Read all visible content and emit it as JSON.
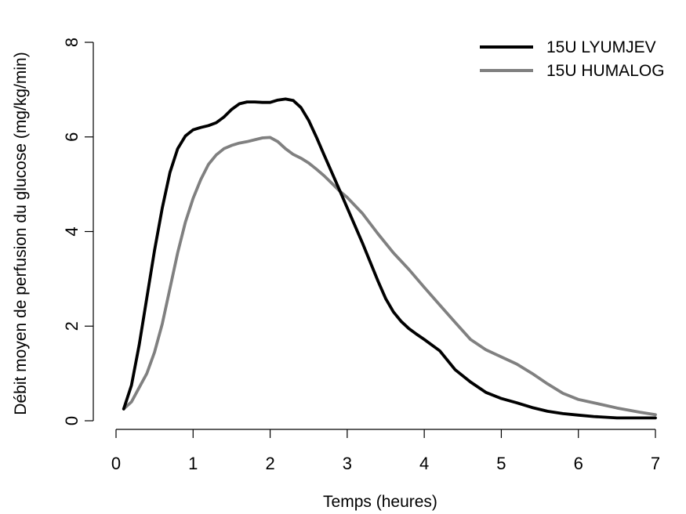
{
  "chart_data": {
    "type": "line",
    "title": "",
    "xlabel": "Temps (heures)",
    "ylabel": "Débit moyen de perfusion du glucose (mg/kg/min)",
    "xlim": [
      0,
      7
    ],
    "ylim": [
      0,
      8
    ],
    "xticks": [
      0,
      1,
      2,
      3,
      4,
      5,
      6,
      7
    ],
    "yticks": [
      0,
      2,
      4,
      6,
      8
    ],
    "grid": false,
    "legend_position": "top-right",
    "series": [
      {
        "name": "15U LYUMJEV",
        "color": "#000000",
        "x": [
          0.1,
          0.2,
          0.3,
          0.4,
          0.5,
          0.6,
          0.7,
          0.8,
          0.9,
          1.0,
          1.1,
          1.2,
          1.3,
          1.4,
          1.5,
          1.6,
          1.7,
          1.8,
          1.9,
          2.0,
          2.1,
          2.2,
          2.3,
          2.4,
          2.5,
          2.6,
          2.7,
          2.8,
          2.9,
          3.0,
          3.2,
          3.4,
          3.5,
          3.6,
          3.7,
          3.8,
          3.9,
          4.0,
          4.2,
          4.4,
          4.6,
          4.8,
          5.0,
          5.2,
          5.4,
          5.6,
          5.8,
          6.0,
          6.2,
          6.5,
          6.8,
          7.0
        ],
        "values": [
          0.25,
          0.75,
          1.6,
          2.6,
          3.6,
          4.5,
          5.25,
          5.75,
          6.02,
          6.15,
          6.2,
          6.24,
          6.3,
          6.42,
          6.58,
          6.7,
          6.74,
          6.74,
          6.73,
          6.73,
          6.78,
          6.8,
          6.77,
          6.62,
          6.35,
          6.0,
          5.62,
          5.25,
          4.88,
          4.5,
          3.75,
          2.95,
          2.58,
          2.3,
          2.1,
          1.95,
          1.83,
          1.72,
          1.48,
          1.08,
          0.82,
          0.6,
          0.47,
          0.38,
          0.28,
          0.2,
          0.15,
          0.12,
          0.09,
          0.06,
          0.06,
          0.06
        ]
      },
      {
        "name": "15U HUMALOG",
        "color": "#808080",
        "x": [
          0.1,
          0.2,
          0.3,
          0.4,
          0.5,
          0.6,
          0.7,
          0.8,
          0.9,
          1.0,
          1.1,
          1.2,
          1.3,
          1.4,
          1.5,
          1.6,
          1.7,
          1.8,
          1.9,
          2.0,
          2.1,
          2.2,
          2.3,
          2.4,
          2.5,
          2.6,
          2.7,
          2.8,
          2.9,
          3.0,
          3.2,
          3.4,
          3.6,
          3.8,
          4.0,
          4.2,
          4.4,
          4.6,
          4.8,
          5.0,
          5.2,
          5.4,
          5.6,
          5.8,
          6.0,
          6.2,
          6.5,
          6.8,
          7.0
        ],
        "values": [
          0.25,
          0.4,
          0.7,
          1.0,
          1.45,
          2.05,
          2.8,
          3.55,
          4.2,
          4.7,
          5.1,
          5.42,
          5.62,
          5.75,
          5.82,
          5.87,
          5.9,
          5.94,
          5.98,
          5.99,
          5.9,
          5.75,
          5.63,
          5.55,
          5.45,
          5.32,
          5.18,
          5.02,
          4.86,
          4.72,
          4.38,
          3.95,
          3.55,
          3.2,
          2.82,
          2.45,
          2.08,
          1.72,
          1.5,
          1.35,
          1.2,
          1.0,
          0.78,
          0.58,
          0.45,
          0.38,
          0.27,
          0.18,
          0.13
        ]
      }
    ]
  }
}
